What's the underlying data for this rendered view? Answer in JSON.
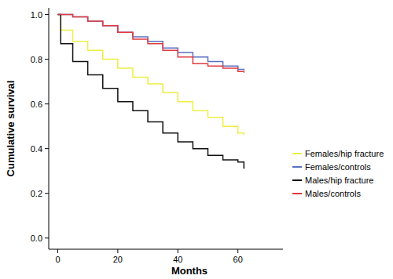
{
  "chart_data": {
    "type": "line",
    "x_label": "Months",
    "y_label": "Cumulative survival",
    "x": [
      0,
      1,
      5,
      10,
      15,
      20,
      25,
      30,
      35,
      40,
      45,
      50,
      55,
      60,
      62
    ],
    "xlim": [
      -3,
      75
    ],
    "xticks": [
      0,
      20,
      40,
      60
    ],
    "ylim": [
      -0.05,
      1.03
    ],
    "yticks": [
      {
        "value": 0,
        "label": "0.0"
      },
      0.2,
      0.4,
      0.6,
      0.8,
      {
        "value": 1,
        "label": "1.0"
      }
    ],
    "grid": false,
    "legend": "right",
    "line_style": "step",
    "series": [
      {
        "name": "Females/hip fracture",
        "color": "#eeee44",
        "values": [
          1.0,
          0.93,
          0.88,
          0.84,
          0.8,
          0.76,
          0.72,
          0.69,
          0.65,
          0.61,
          0.57,
          0.54,
          0.5,
          0.47,
          0.46
        ]
      },
      {
        "name": "Females/controls",
        "color": "#5b6fc2",
        "values": [
          1.0,
          1.0,
          0.99,
          0.97,
          0.95,
          0.92,
          0.9,
          0.88,
          0.85,
          0.83,
          0.81,
          0.79,
          0.77,
          0.755,
          0.75
        ]
      },
      {
        "name": "Males/hip fracture",
        "color": "#111111",
        "values": [
          1.0,
          0.87,
          0.79,
          0.73,
          0.67,
          0.61,
          0.57,
          0.52,
          0.47,
          0.43,
          0.4,
          0.37,
          0.35,
          0.34,
          0.31
        ]
      },
      {
        "name": "Males/controls",
        "color": "#e03a3e",
        "values": [
          1.0,
          1.0,
          0.99,
          0.97,
          0.95,
          0.92,
          0.89,
          0.87,
          0.84,
          0.81,
          0.78,
          0.77,
          0.76,
          0.745,
          0.74
        ]
      }
    ]
  }
}
